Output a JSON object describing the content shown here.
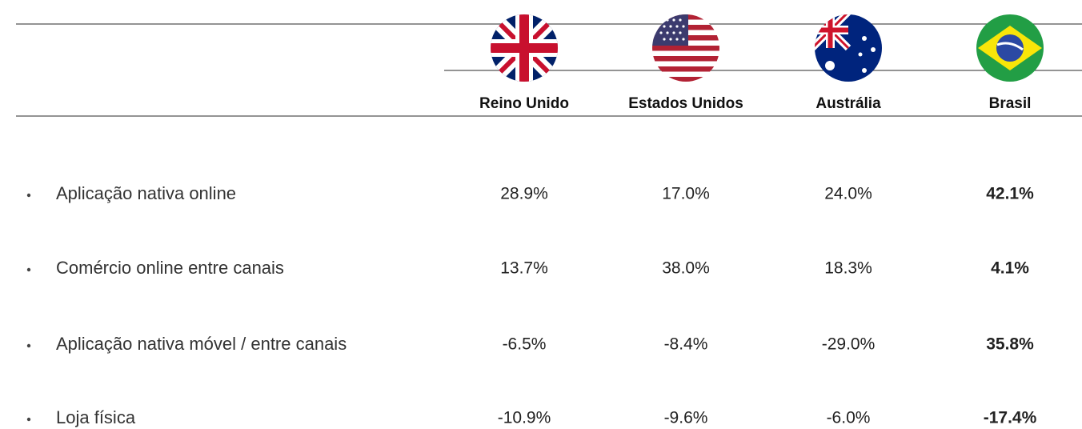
{
  "table": {
    "columns": [
      "Reino Unido",
      "Estados Unidos",
      "Austrália",
      "Brasil"
    ],
    "rows": [
      {
        "label": "Aplicação nativa online",
        "values": [
          "28.9%",
          "17.0%",
          "24.0%",
          "42.1%"
        ]
      },
      {
        "label": "Comércio online entre canais",
        "values": [
          "13.7%",
          "38.0%",
          "18.3%",
          "4.1%"
        ]
      },
      {
        "label": "Aplicação nativa móvel / entre canais",
        "values": [
          "-6.5%",
          "-8.4%",
          "-29.0%",
          "35.8%"
        ]
      },
      {
        "label": "Loja física",
        "values": [
          "-10.9%",
          "-9.6%",
          "-6.0%",
          "-17.4%"
        ]
      }
    ]
  }
}
